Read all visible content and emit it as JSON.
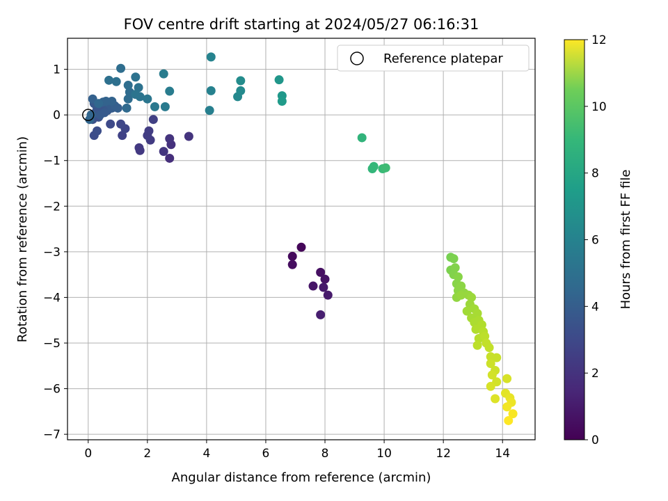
{
  "chart_data": {
    "type": "scatter",
    "title": "FOV centre drift starting at 2024/05/27 06:16:31",
    "xlabel": "Angular distance from reference (arcmin)",
    "ylabel": "Rotation from reference (arcmin)",
    "xlim": [
      -0.7,
      15.1
    ],
    "ylim": [
      -7.12,
      1.68
    ],
    "xticks": [
      "0",
      "2",
      "4",
      "6",
      "8",
      "10",
      "12",
      "14"
    ],
    "yticks": [
      "1",
      "0",
      "−1",
      "−2",
      "−3",
      "−4",
      "−5",
      "−6",
      "−7"
    ],
    "grid": true,
    "legend": {
      "position": "top-right",
      "label": "Reference platepar"
    },
    "colorbar": {
      "label": "Hours from first FF file",
      "range": [
        0,
        12
      ],
      "ticks": [
        "0",
        "2",
        "4",
        "6",
        "8",
        "10",
        "12"
      ],
      "colormap": "viridis"
    },
    "reference_point": {
      "x": 0,
      "y": 0
    },
    "points": [
      {
        "x": 7.2,
        "y": -2.9,
        "c": 0.2
      },
      {
        "x": 6.9,
        "y": -3.1,
        "c": 0.3
      },
      {
        "x": 6.9,
        "y": -3.28,
        "c": 0.4
      },
      {
        "x": 7.85,
        "y": -3.45,
        "c": 0.5
      },
      {
        "x": 8.0,
        "y": -3.6,
        "c": 0.6
      },
      {
        "x": 7.6,
        "y": -3.75,
        "c": 0.7
      },
      {
        "x": 7.95,
        "y": -3.78,
        "c": 0.8
      },
      {
        "x": 8.1,
        "y": -3.95,
        "c": 0.9
      },
      {
        "x": 7.85,
        "y": -4.38,
        "c": 1.0
      },
      {
        "x": 2.75,
        "y": -0.95,
        "c": 1.6
      },
      {
        "x": 2.8,
        "y": -0.65,
        "c": 1.7
      },
      {
        "x": 2.75,
        "y": -0.52,
        "c": 1.8
      },
      {
        "x": 3.4,
        "y": -0.47,
        "c": 1.8
      },
      {
        "x": 2.55,
        "y": -0.8,
        "c": 1.9
      },
      {
        "x": 1.75,
        "y": -0.78,
        "c": 2.0
      },
      {
        "x": 1.72,
        "y": -0.72,
        "c": 2.0
      },
      {
        "x": 2.1,
        "y": -0.55,
        "c": 2.1
      },
      {
        "x": 2.0,
        "y": -0.45,
        "c": 2.2
      },
      {
        "x": 2.05,
        "y": -0.35,
        "c": 2.2
      },
      {
        "x": 2.2,
        "y": -0.1,
        "c": 2.3
      },
      {
        "x": 1.15,
        "y": -0.45,
        "c": 2.4
      },
      {
        "x": 1.25,
        "y": -0.3,
        "c": 2.5
      },
      {
        "x": 1.1,
        "y": -0.2,
        "c": 2.6
      },
      {
        "x": 0.75,
        "y": -0.2,
        "c": 2.7
      },
      {
        "x": 0.2,
        "y": -0.45,
        "c": 2.8
      },
      {
        "x": 0.3,
        "y": -0.35,
        "c": 2.9
      },
      {
        "x": 0.15,
        "y": -0.1,
        "c": 3.0
      },
      {
        "x": 0.35,
        "y": -0.05,
        "c": 3.0
      },
      {
        "x": 0.25,
        "y": 0.05,
        "c": 3.1
      },
      {
        "x": 0.45,
        "y": 0.1,
        "c": 3.1
      },
      {
        "x": 0.55,
        "y": 0.2,
        "c": 3.2
      },
      {
        "x": 0.3,
        "y": 0.15,
        "c": 3.2
      },
      {
        "x": 0.2,
        "y": 0.25,
        "c": 3.3
      },
      {
        "x": 0.65,
        "y": 0.1,
        "c": 3.3
      },
      {
        "x": 0.4,
        "y": 0.0,
        "c": 3.4
      },
      {
        "x": 0.55,
        "y": 0.05,
        "c": 3.4
      },
      {
        "x": 0.8,
        "y": 0.15,
        "c": 3.5
      },
      {
        "x": 0.7,
        "y": 0.25,
        "c": 3.5
      },
      {
        "x": 0.9,
        "y": 0.2,
        "c": 3.6
      },
      {
        "x": 1.0,
        "y": 0.15,
        "c": 3.6
      },
      {
        "x": 0.15,
        "y": 0.35,
        "c": 3.7
      },
      {
        "x": 0.5,
        "y": 0.28,
        "c": 3.7
      },
      {
        "x": 0.8,
        "y": 0.3,
        "c": 3.8
      },
      {
        "x": 0.6,
        "y": 0.3,
        "c": 3.8
      },
      {
        "x": 0.1,
        "y": 0.0,
        "c": 3.9
      },
      {
        "x": 0.05,
        "y": -0.1,
        "c": 3.9
      },
      {
        "x": 0.35,
        "y": 0.25,
        "c": 4.0
      },
      {
        "x": 1.3,
        "y": 0.15,
        "c": 4.1
      },
      {
        "x": 1.35,
        "y": 0.35,
        "c": 4.2
      },
      {
        "x": 1.4,
        "y": 0.5,
        "c": 4.2
      },
      {
        "x": 1.35,
        "y": 0.65,
        "c": 4.3
      },
      {
        "x": 1.1,
        "y": 1.02,
        "c": 4.3
      },
      {
        "x": 0.7,
        "y": 0.76,
        "c": 4.4
      },
      {
        "x": 0.95,
        "y": 0.73,
        "c": 4.4
      },
      {
        "x": 1.6,
        "y": 0.83,
        "c": 4.5
      },
      {
        "x": 1.7,
        "y": 0.6,
        "c": 4.5
      },
      {
        "x": 1.75,
        "y": 0.4,
        "c": 4.6
      },
      {
        "x": 1.6,
        "y": 0.45,
        "c": 4.6
      },
      {
        "x": 2.0,
        "y": 0.35,
        "c": 4.7
      },
      {
        "x": 2.25,
        "y": 0.18,
        "c": 4.8
      },
      {
        "x": 2.6,
        "y": 0.18,
        "c": 4.9
      },
      {
        "x": 2.75,
        "y": 0.52,
        "c": 5.0
      },
      {
        "x": 2.55,
        "y": 0.9,
        "c": 5.0
      },
      {
        "x": 4.1,
        "y": 0.1,
        "c": 5.2
      },
      {
        "x": 4.15,
        "y": 0.53,
        "c": 5.3
      },
      {
        "x": 4.15,
        "y": 1.27,
        "c": 5.4
      },
      {
        "x": 5.05,
        "y": 0.4,
        "c": 5.6
      },
      {
        "x": 5.15,
        "y": 0.53,
        "c": 5.7
      },
      {
        "x": 5.15,
        "y": 0.75,
        "c": 5.8
      },
      {
        "x": 6.45,
        "y": 0.77,
        "c": 6.3
      },
      {
        "x": 6.55,
        "y": 0.42,
        "c": 6.4
      },
      {
        "x": 6.55,
        "y": 0.3,
        "c": 6.5
      },
      {
        "x": 9.25,
        "y": -0.5,
        "c": 7.8
      },
      {
        "x": 9.6,
        "y": -1.18,
        "c": 7.9
      },
      {
        "x": 9.65,
        "y": -1.13,
        "c": 8.0
      },
      {
        "x": 9.95,
        "y": -1.18,
        "c": 8.1
      },
      {
        "x": 10.05,
        "y": -1.16,
        "c": 8.2
      },
      {
        "x": 12.25,
        "y": -3.12,
        "c": 9.5
      },
      {
        "x": 12.35,
        "y": -3.15,
        "c": 9.6
      },
      {
        "x": 12.25,
        "y": -3.4,
        "c": 9.6
      },
      {
        "x": 12.4,
        "y": -3.35,
        "c": 9.7
      },
      {
        "x": 12.35,
        "y": -3.5,
        "c": 9.7
      },
      {
        "x": 12.5,
        "y": -3.55,
        "c": 9.8
      },
      {
        "x": 12.45,
        "y": -3.7,
        "c": 9.8
      },
      {
        "x": 12.6,
        "y": -3.75,
        "c": 9.9
      },
      {
        "x": 12.5,
        "y": -3.85,
        "c": 9.9
      },
      {
        "x": 12.7,
        "y": -3.9,
        "c": 10.0
      },
      {
        "x": 12.45,
        "y": -4.0,
        "c": 10.0
      },
      {
        "x": 12.6,
        "y": -3.95,
        "c": 10.1
      },
      {
        "x": 12.85,
        "y": -3.95,
        "c": 10.1
      },
      {
        "x": 12.95,
        "y": -4.0,
        "c": 10.2
      },
      {
        "x": 12.9,
        "y": -4.15,
        "c": 10.2
      },
      {
        "x": 12.8,
        "y": -4.3,
        "c": 10.3
      },
      {
        "x": 13.05,
        "y": -4.25,
        "c": 10.3
      },
      {
        "x": 12.95,
        "y": -4.45,
        "c": 10.4
      },
      {
        "x": 13.15,
        "y": -4.35,
        "c": 10.4
      },
      {
        "x": 13.05,
        "y": -4.55,
        "c": 10.5
      },
      {
        "x": 13.2,
        "y": -4.5,
        "c": 10.5
      },
      {
        "x": 13.3,
        "y": -4.6,
        "c": 10.6
      },
      {
        "x": 13.1,
        "y": -4.7,
        "c": 10.6
      },
      {
        "x": 13.35,
        "y": -4.75,
        "c": 10.7
      },
      {
        "x": 13.2,
        "y": -4.9,
        "c": 10.7
      },
      {
        "x": 13.4,
        "y": -4.85,
        "c": 10.8
      },
      {
        "x": 13.15,
        "y": -5.05,
        "c": 10.8
      },
      {
        "x": 13.45,
        "y": -5.0,
        "c": 10.9
      },
      {
        "x": 13.55,
        "y": -5.1,
        "c": 10.9
      },
      {
        "x": 13.6,
        "y": -5.3,
        "c": 11.0
      },
      {
        "x": 13.8,
        "y": -5.32,
        "c": 11.0
      },
      {
        "x": 13.6,
        "y": -5.45,
        "c": 11.1
      },
      {
        "x": 13.75,
        "y": -5.6,
        "c": 11.1
      },
      {
        "x": 13.65,
        "y": -5.7,
        "c": 11.2
      },
      {
        "x": 13.8,
        "y": -5.85,
        "c": 11.2
      },
      {
        "x": 13.6,
        "y": -5.95,
        "c": 11.3
      },
      {
        "x": 14.15,
        "y": -5.78,
        "c": 11.3
      },
      {
        "x": 13.75,
        "y": -6.22,
        "c": 11.4
      },
      {
        "x": 14.1,
        "y": -6.1,
        "c": 11.5
      },
      {
        "x": 14.25,
        "y": -6.2,
        "c": 11.6
      },
      {
        "x": 14.3,
        "y": -6.3,
        "c": 11.7
      },
      {
        "x": 14.15,
        "y": -6.4,
        "c": 11.8
      },
      {
        "x": 14.35,
        "y": -6.55,
        "c": 11.9
      },
      {
        "x": 14.2,
        "y": -6.7,
        "c": 12.0
      }
    ]
  }
}
